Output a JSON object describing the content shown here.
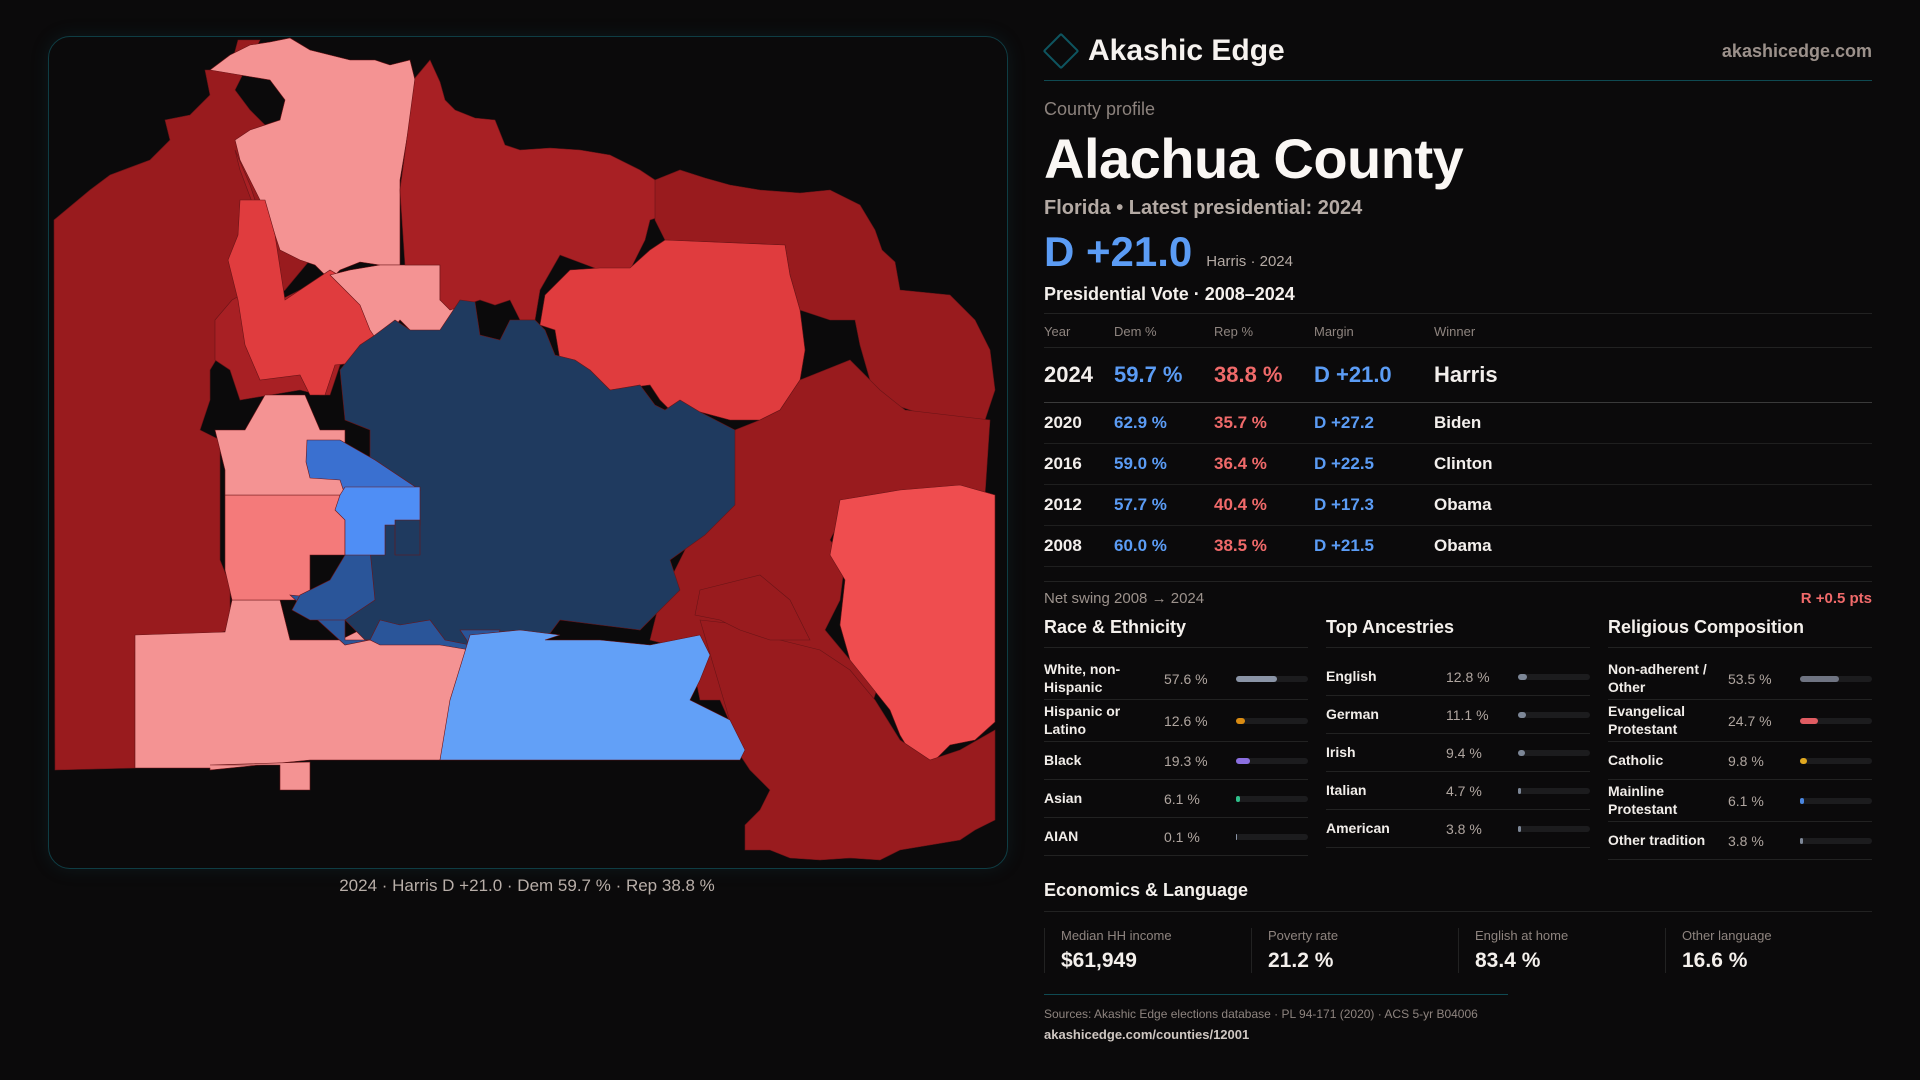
{
  "brand": {
    "name": "Akashic Edge",
    "url": "akashicedge.com",
    "logo_icon": "diamond-outline-icon"
  },
  "header": {
    "kicker": "County profile",
    "title": "Alachua County",
    "subtitle": "Florida • Latest presidential: 2024",
    "margin": "D +21.0",
    "margin_note": "Harris · 2024"
  },
  "votes": {
    "title": "Presidential Vote · 2008–2024",
    "columns": [
      "Year",
      "Dem %",
      "Rep %",
      "Margin",
      "Winner"
    ],
    "rows": [
      {
        "year": "2024",
        "dem": "59.7 %",
        "rep": "38.8 %",
        "margin": "D +21.0",
        "winner": "Harris"
      },
      {
        "year": "2020",
        "dem": "62.9 %",
        "rep": "35.7 %",
        "margin": "D +27.2",
        "winner": "Biden"
      },
      {
        "year": "2016",
        "dem": "59.0 %",
        "rep": "36.4 %",
        "margin": "D +22.5",
        "winner": "Clinton"
      },
      {
        "year": "2012",
        "dem": "57.7 %",
        "rep": "40.4 %",
        "margin": "D +17.3",
        "winner": "Obama"
      },
      {
        "year": "2008",
        "dem": "60.0 %",
        "rep": "38.5 %",
        "margin": "D +21.5",
        "winner": "Obama"
      }
    ],
    "swing_label": "Net swing 2008 → 2024",
    "swing_value": "R +0.5 pts"
  },
  "race": {
    "title": "Race & Ethnicity",
    "items": [
      {
        "label": "White, non-Hispanic",
        "value": "57.6 %",
        "pct": 57.6,
        "color": "#8a94a6"
      },
      {
        "label": "Hispanic or Latino",
        "value": "12.6 %",
        "pct": 12.6,
        "color": "#d98b12"
      },
      {
        "label": "Black",
        "value": "19.3 %",
        "pct": 19.3,
        "color": "#8b6fe0"
      },
      {
        "label": "Asian",
        "value": "6.1 %",
        "pct": 6.1,
        "color": "#2fbf8a"
      },
      {
        "label": "AIAN",
        "value": "0.1 %",
        "pct": 0.1,
        "color": "#8a94a6"
      }
    ]
  },
  "ancestry": {
    "title": "Top Ancestries",
    "items": [
      {
        "label": "English",
        "value": "12.8 %",
        "pct": 12.8,
        "color": "#7d8797"
      },
      {
        "label": "German",
        "value": "11.1 %",
        "pct": 11.1,
        "color": "#7d8797"
      },
      {
        "label": "Irish",
        "value": "9.4 %",
        "pct": 9.4,
        "color": "#7d8797"
      },
      {
        "label": "Italian",
        "value": "4.7 %",
        "pct": 4.7,
        "color": "#7d8797"
      },
      {
        "label": "American",
        "value": "3.8 %",
        "pct": 3.8,
        "color": "#7d8797"
      }
    ]
  },
  "religion": {
    "title": "Religious Composition",
    "items": [
      {
        "label": "Non-adherent / Other",
        "value": "53.5 %",
        "pct": 53.5,
        "color": "#6f7482"
      },
      {
        "label": "Evangelical Protestant",
        "value": "24.7 %",
        "pct": 24.7,
        "color": "#e05c62"
      },
      {
        "label": "Catholic",
        "value": "9.8 %",
        "pct": 9.8,
        "color": "#e0a820"
      },
      {
        "label": "Mainline Protestant",
        "value": "6.1 %",
        "pct": 6.1,
        "color": "#4a86e0"
      },
      {
        "label": "Other tradition",
        "value": "3.8 %",
        "pct": 3.8,
        "color": "#7d8797"
      }
    ]
  },
  "economics": {
    "title": "Economics & Language",
    "cells": [
      {
        "label": "Median HH income",
        "value": "$61,949"
      },
      {
        "label": "Poverty rate",
        "value": "21.2 %"
      },
      {
        "label": "English at home",
        "value": "83.4 %"
      },
      {
        "label": "Other language",
        "value": "16.6 %"
      }
    ]
  },
  "map": {
    "caption": "2024 · Harris D +21.0 · Dem 59.7 % · Rep 38.8 %",
    "colors": {
      "safe_r": "#991b1e",
      "likely_r": "#a82024",
      "lean_r": "#e03c3e",
      "tilt_r": "#ef4d4f",
      "soft_r": "#f49393",
      "mid_r": "#f47a7a",
      "safe_d": "#1f3a5f",
      "likely_d": "#2a5599",
      "lean_d": "#3a70d0",
      "tilt_d": "#4f8ef5",
      "soft_d": "#62a0f7"
    }
  },
  "footer": {
    "sources": "Sources: Akashic Edge elections database · PL 94-171 (2020) · ACS 5-yr B04006",
    "url": "akashicedge.com/counties/12001"
  }
}
